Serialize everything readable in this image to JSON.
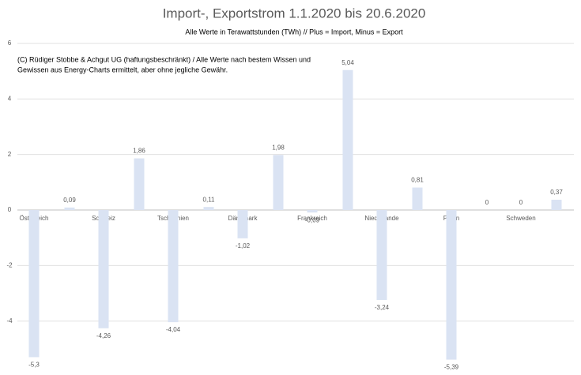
{
  "chart_data": {
    "type": "bar",
    "title": "Import-, Exportstrom 1.1.2020 bis 20.6.2020",
    "subtitle": "Alle Werte in Terawattstunden (TWh) // Plus = Import, Minus = Export",
    "annotation": [
      "(C) Rüdiger Stobbe & Achgut UG (haftungsbeschränkt) / Alle Werte nach bestem Wissen und",
      "Gewissen aus Energy-Charts ermittelt, aber ohne jegliche Gewähr."
    ],
    "categories": [
      "Österreich",
      "Schweiz",
      "Tschechien",
      "Dänemark",
      "Frankreich",
      "Niederlande",
      "Polen",
      "Schweden"
    ],
    "series": [
      {
        "color": "#dae3f3",
        "values": [
          -5.3,
          -4.26,
          -4.04,
          -1.02,
          -0.09,
          -3.24,
          -5.39,
          0
        ],
        "value_labels": [
          "-5,3",
          "-4,26",
          "-4,04",
          "-1,02",
          "-0,09",
          "-3,24",
          "-5,39",
          "0"
        ]
      },
      {
        "color": "#dae3f3",
        "values": [
          0.09,
          1.86,
          0.11,
          1.98,
          5.04,
          0.81,
          0,
          0.37
        ],
        "value_labels": [
          "0,09",
          "1,86",
          "0,11",
          "1,98",
          "5,04",
          "0,81",
          "0",
          "0,37"
        ]
      }
    ],
    "ylim": [
      -5.8,
      6
    ],
    "yticks": [
      -4,
      -2,
      0,
      2,
      4,
      6
    ],
    "grid": true
  }
}
